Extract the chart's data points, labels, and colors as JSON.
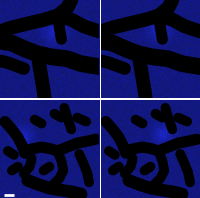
{
  "figsize": [
    2.0,
    1.98
  ],
  "dpi": 100,
  "background_blue": "#121880",
  "scale_bar_color": "#ffffff"
}
